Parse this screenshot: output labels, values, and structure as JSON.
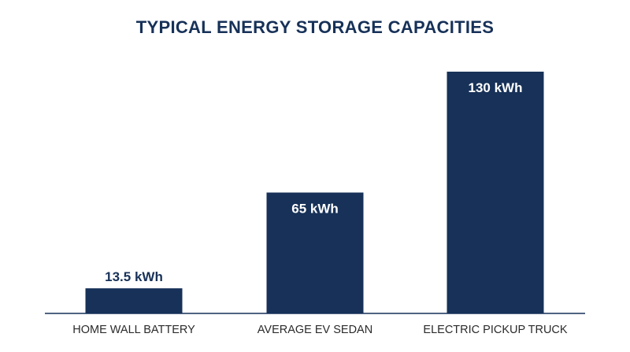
{
  "chart_data": {
    "type": "bar",
    "title": "TYPICAL ENERGY STORAGE CAPACITIES",
    "categories": [
      "HOME WALL BATTERY",
      "AVERAGE EV SEDAN",
      "ELECTRIC PICKUP TRUCK"
    ],
    "values": [
      13.5,
      65,
      130
    ],
    "data_labels": [
      "13.5 kWh",
      "65 kWh",
      "130 kWh"
    ],
    "unit": "kWh",
    "xlabel": "",
    "ylabel": "",
    "ylim": [
      0,
      130
    ],
    "grid": false,
    "legend": "none"
  },
  "colors": {
    "bar": "#173158",
    "title": "#173158",
    "label_inside": "#ffffff",
    "label_outside": "#173158",
    "category_text": "#2b2b2b",
    "axis": "#173158"
  }
}
